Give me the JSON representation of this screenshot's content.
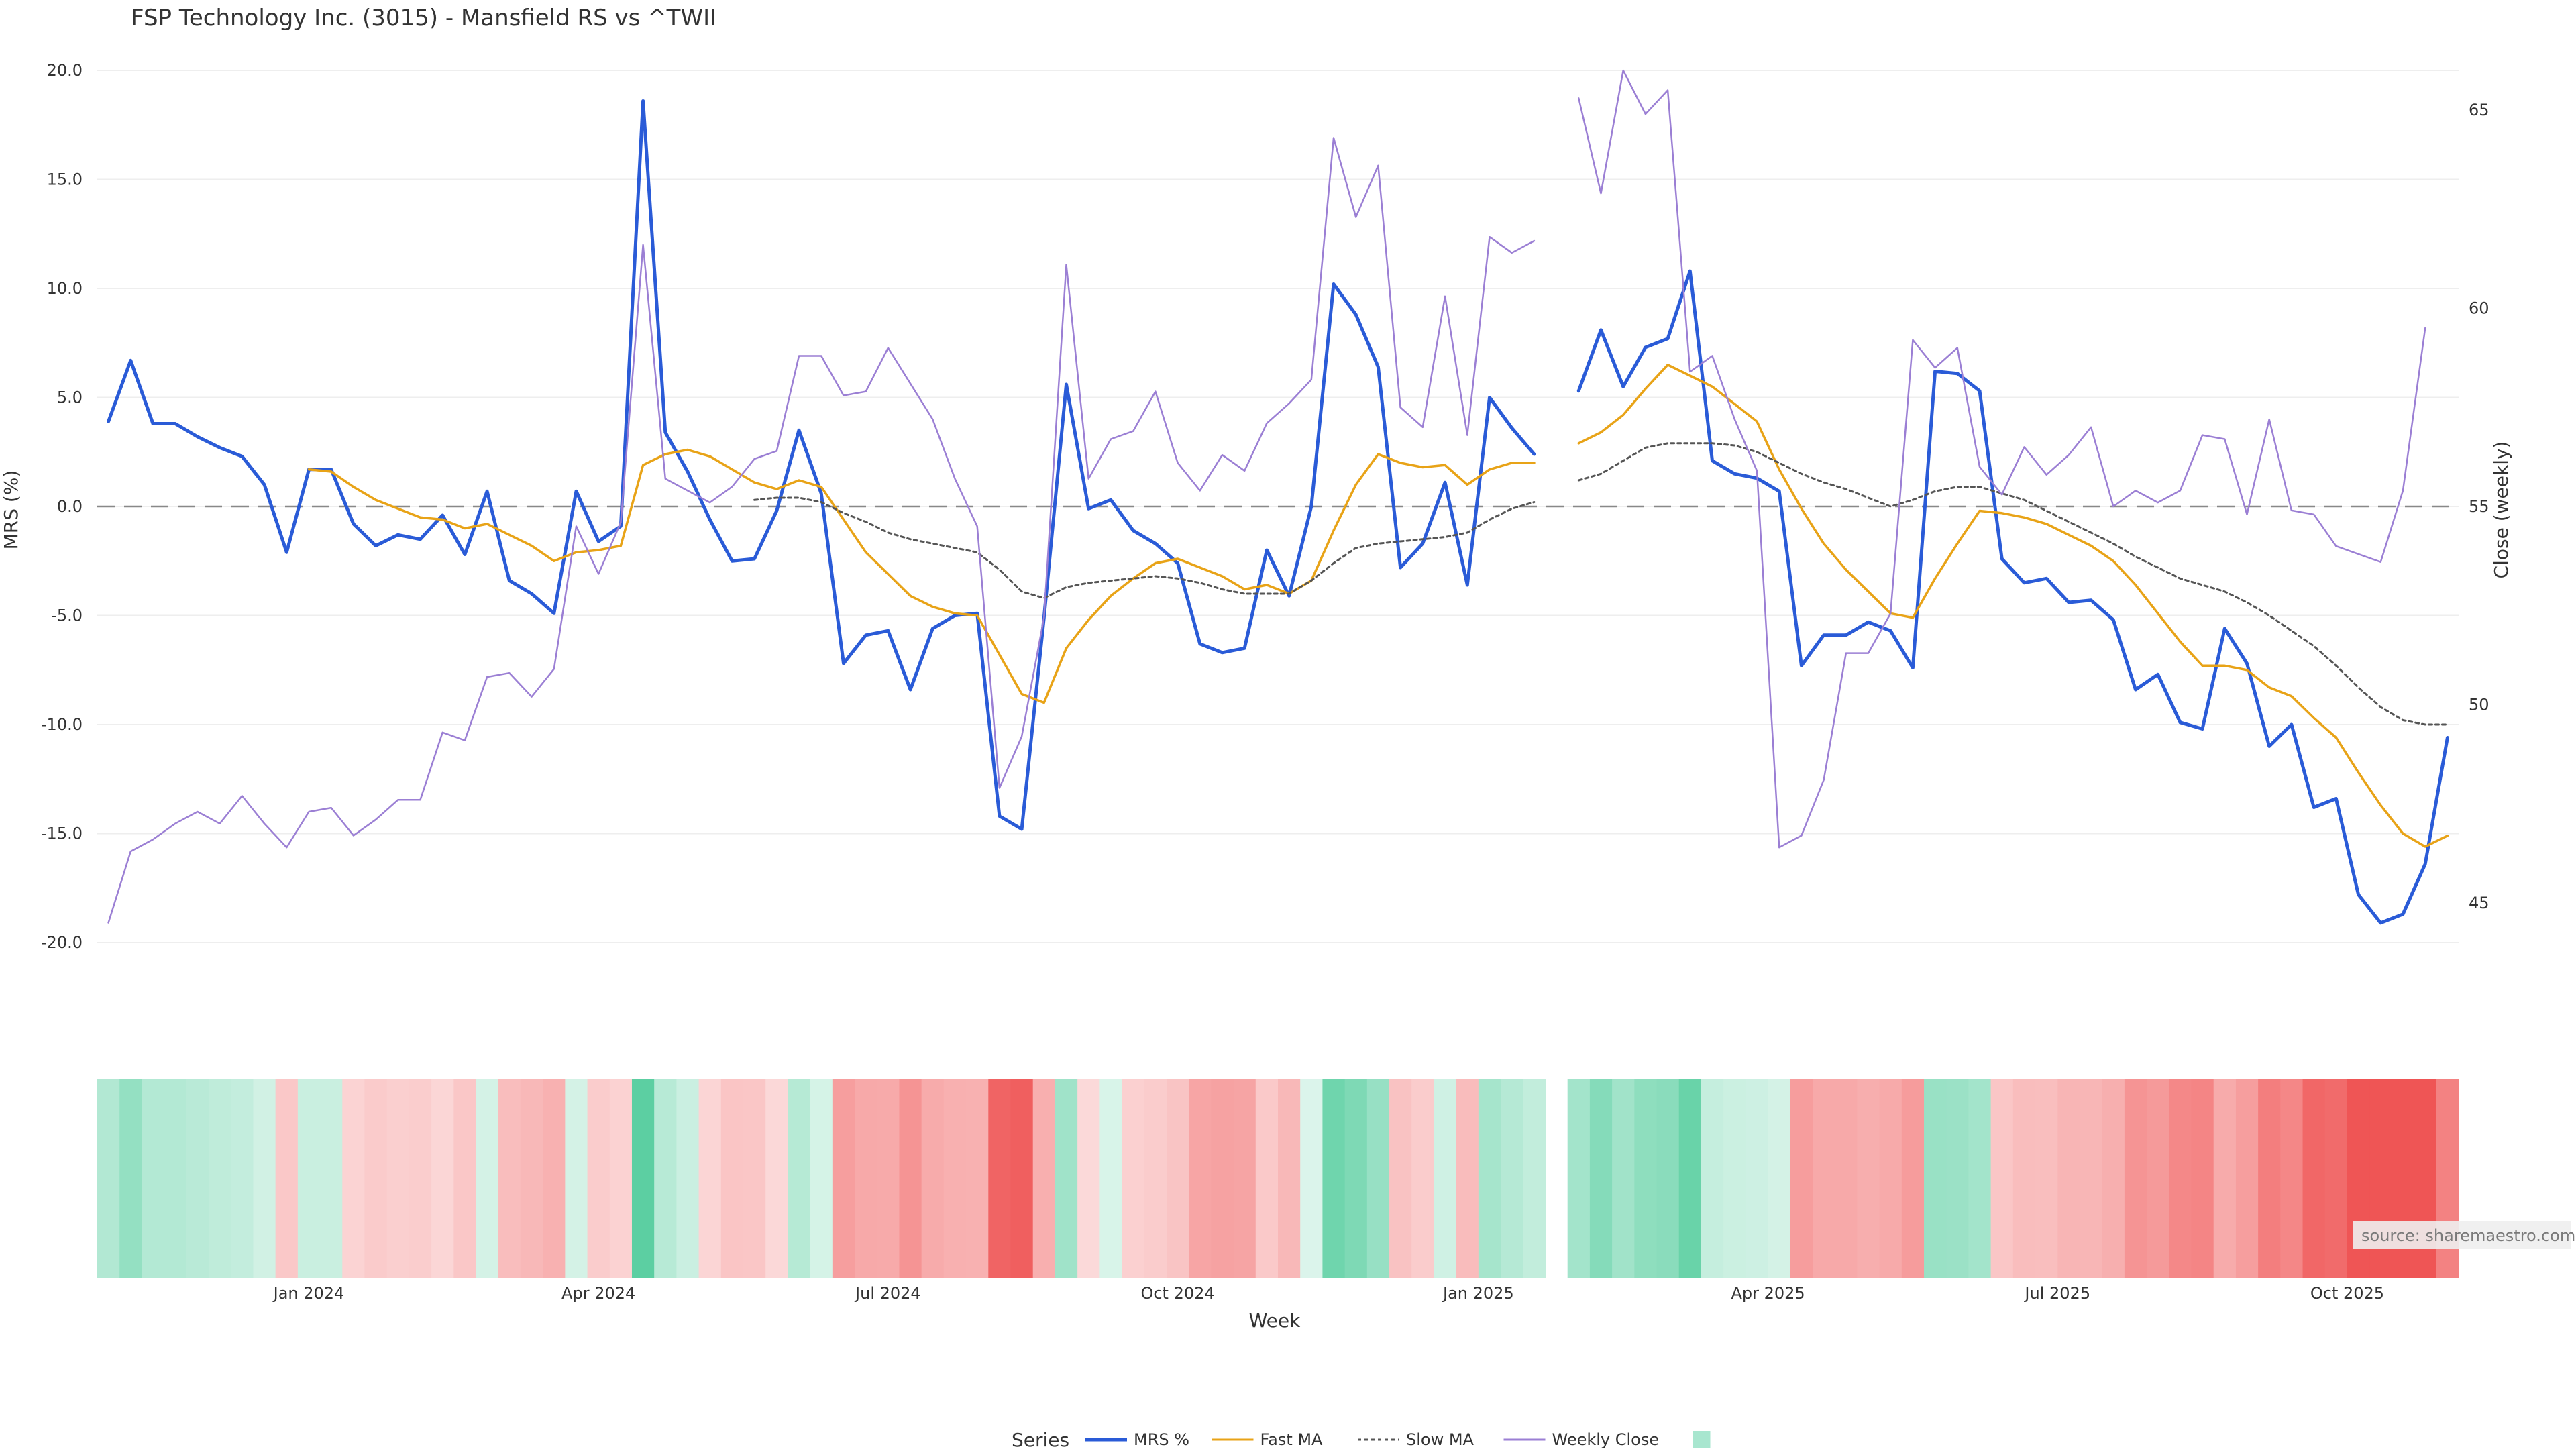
{
  "chart_data": {
    "type": "line",
    "title": "FSP Technology Inc. (3015) - Mansfield RS vs ^TWII",
    "xlabel": "Week",
    "ylabel_left": "MRS (%)",
    "ylabel_right": "Close (weekly)",
    "ylim_left": [
      -20,
      20
    ],
    "ylim_right": [
      44,
      66
    ],
    "left_ticks": [
      "20.0",
      "15.0",
      "10.0",
      "5.0",
      "0.0",
      "-5.0",
      "-10.0",
      "-15.0",
      "-20.0"
    ],
    "left_tick_values": [
      20,
      15,
      10,
      5,
      0,
      -5,
      -10,
      -15,
      -20
    ],
    "right_ticks": [
      "65",
      "60",
      "55",
      "50",
      "45"
    ],
    "right_tick_values": [
      65,
      60,
      55,
      50,
      45
    ],
    "x_ticks": [
      {
        "label": "Jan 2024",
        "week": 9
      },
      {
        "label": "Apr 2024",
        "week": 22
      },
      {
        "label": "Jul 2024",
        "week": 35
      },
      {
        "label": "Oct 2024",
        "week": 48
      },
      {
        "label": "Jan 2025",
        "week": 61.5
      },
      {
        "label": "Apr 2025",
        "week": 74.5
      },
      {
        "label": "Jul 2025",
        "week": 87.5
      },
      {
        "label": "Oct 2025",
        "week": 100.5
      }
    ],
    "gap_week": 65,
    "series": [
      {
        "name": "MRS %",
        "color": "#2a5bd7",
        "style": "solid",
        "axis": "left",
        "values": [
          3.9,
          6.7,
          3.8,
          3.8,
          3.2,
          2.7,
          2.3,
          1.0,
          -2.1,
          1.7,
          1.7,
          -0.8,
          -1.8,
          -1.3,
          -1.5,
          -0.4,
          -2.2,
          0.7,
          -3.4,
          -4.0,
          -4.9,
          0.7,
          -1.6,
          -0.9,
          18.6,
          3.4,
          1.6,
          -0.6,
          -2.5,
          -2.4,
          -0.2,
          3.5,
          0.6,
          -7.2,
          -5.9,
          -5.7,
          -8.4,
          -5.6,
          -5.0,
          -4.9,
          -14.2,
          -14.8,
          -5.1,
          5.6,
          -0.1,
          0.3,
          -1.1,
          -1.7,
          -2.6,
          -6.3,
          -6.7,
          -6.5,
          -2.0,
          -4.1,
          0.0,
          10.2,
          8.8,
          6.4,
          -2.8,
          -1.7,
          1.1,
          -3.6,
          5.0,
          3.6,
          2.4,
          null,
          5.3,
          8.1,
          5.5,
          7.3,
          7.7,
          10.8,
          2.1,
          1.5,
          1.3,
          0.7,
          -7.3,
          -5.9,
          -5.9,
          -5.3,
          -5.7,
          -7.4,
          6.2,
          6.1,
          5.3,
          -2.4,
          -3.5,
          -3.3,
          -4.4,
          -4.3,
          -5.2,
          -8.4,
          -7.7,
          -9.9,
          -10.2,
          -5.6,
          -7.2,
          -11.0,
          -10.0,
          -13.8,
          -13.4,
          -17.8,
          -19.1,
          -18.7,
          -16.4,
          -10.6
        ]
      },
      {
        "name": "Fast MA",
        "color": "#e8a317",
        "style": "solid",
        "axis": "left",
        "values": [
          null,
          null,
          null,
          null,
          null,
          null,
          null,
          null,
          null,
          1.7,
          1.6,
          0.9,
          0.3,
          -0.1,
          -0.5,
          -0.6,
          -1.0,
          -0.8,
          -1.3,
          -1.8,
          -2.5,
          -2.1,
          -2.0,
          -1.8,
          1.9,
          2.4,
          2.6,
          2.3,
          1.7,
          1.1,
          0.8,
          1.2,
          0.9,
          -0.6,
          -2.1,
          -3.1,
          -4.1,
          -4.6,
          -4.9,
          -5.0,
          -6.8,
          -8.6,
          -9.0,
          -6.5,
          -5.2,
          -4.1,
          -3.3,
          -2.6,
          -2.4,
          -2.8,
          -3.2,
          -3.8,
          -3.6,
          -4.0,
          -3.4,
          -1.1,
          1.0,
          2.4,
          2.0,
          1.8,
          1.9,
          1.0,
          1.7,
          2.0,
          2.0,
          null,
          2.9,
          3.4,
          4.2,
          5.4,
          6.5,
          6.0,
          5.5,
          4.7,
          3.9,
          1.7,
          -0.1,
          -1.7,
          -2.9,
          -3.9,
          -4.9,
          -5.1,
          -3.3,
          -1.7,
          -0.2,
          -0.3,
          -0.5,
          -0.8,
          -1.3,
          -1.8,
          -2.5,
          -3.6,
          -4.9,
          -6.2,
          -7.3,
          -7.3,
          -7.5,
          -8.3,
          -8.7,
          -9.7,
          -10.6,
          -12.2,
          -13.7,
          -15.0,
          -15.6,
          -15.1
        ]
      },
      {
        "name": "Slow MA",
        "color": "#555555",
        "style": "dotted",
        "axis": "left",
        "values": [
          null,
          null,
          null,
          null,
          null,
          null,
          null,
          null,
          null,
          null,
          null,
          null,
          null,
          null,
          null,
          null,
          null,
          null,
          null,
          null,
          null,
          null,
          null,
          null,
          null,
          null,
          null,
          null,
          null,
          0.3,
          0.4,
          0.4,
          0.2,
          -0.3,
          -0.7,
          -1.2,
          -1.5,
          -1.7,
          -1.9,
          -2.1,
          -2.9,
          -3.9,
          -4.2,
          -3.7,
          -3.5,
          -3.4,
          -3.3,
          -3.2,
          -3.3,
          -3.5,
          -3.8,
          -4.0,
          -4.0,
          -4.0,
          -3.4,
          -2.6,
          -1.9,
          -1.7,
          -1.6,
          -1.5,
          -1.4,
          -1.2,
          -0.6,
          -0.1,
          0.2,
          null,
          1.2,
          1.5,
          2.1,
          2.7,
          2.9,
          2.9,
          2.9,
          2.8,
          2.5,
          2.0,
          1.5,
          1.1,
          0.8,
          0.4,
          0.0,
          0.3,
          0.7,
          0.9,
          0.9,
          0.6,
          0.3,
          -0.2,
          -0.7,
          -1.2,
          -1.7,
          -2.3,
          -2.8,
          -3.3,
          -3.6,
          -3.9,
          -4.4,
          -5.0,
          -5.7,
          -6.4,
          -7.3,
          -8.3,
          -9.2,
          -9.8,
          -10.0,
          -10.0
        ]
      },
      {
        "name": "Weekly Close",
        "color": "#9b7fd4",
        "style": "solid",
        "axis": "right",
        "values": [
          44.5,
          46.3,
          46.6,
          47.0,
          47.3,
          47.0,
          47.7,
          47.0,
          46.4,
          47.3,
          47.4,
          46.7,
          47.1,
          47.6,
          47.6,
          49.3,
          49.1,
          50.7,
          50.8,
          50.2,
          50.9,
          54.5,
          53.3,
          54.6,
          61.6,
          55.7,
          55.4,
          55.1,
          55.5,
          56.2,
          56.4,
          58.8,
          58.8,
          57.8,
          57.9,
          59.0,
          58.1,
          57.2,
          55.7,
          54.5,
          47.9,
          49.2,
          52.2,
          61.1,
          55.7,
          56.7,
          56.9,
          57.9,
          56.1,
          55.4,
          56.3,
          55.9,
          57.1,
          57.6,
          58.2,
          64.3,
          62.3,
          63.6,
          57.5,
          57.0,
          60.3,
          56.8,
          61.8,
          61.4,
          61.7,
          null,
          65.3,
          62.9,
          66.0,
          64.9,
          65.5,
          58.4,
          58.8,
          57.2,
          55.9,
          46.4,
          46.7,
          48.1,
          51.3,
          51.3,
          52.3,
          59.2,
          58.5,
          59.0,
          56.0,
          55.3,
          56.5,
          55.8,
          56.3,
          57.0,
          55.0,
          55.4,
          55.1,
          55.4,
          56.8,
          56.7,
          54.8,
          57.2,
          54.9,
          54.8,
          54.0,
          53.8,
          53.6,
          55.4,
          59.5
        ]
      }
    ],
    "heatmap": {
      "description_values_are_mrs": true,
      "values": [
        3.9,
        6.7,
        3.8,
        3.8,
        3.2,
        2.7,
        2.3,
        1.0,
        -2.1,
        1.7,
        1.7,
        -0.8,
        -1.8,
        -1.3,
        -1.5,
        -0.4,
        -2.2,
        0.7,
        -3.4,
        -4.0,
        -4.9,
        0.7,
        -1.6,
        -0.9,
        18.6,
        3.4,
        1.6,
        -0.6,
        -2.5,
        -2.4,
        -0.2,
        3.5,
        0.6,
        -7.2,
        -5.9,
        -5.7,
        -8.4,
        -5.6,
        -5.0,
        -4.9,
        -14.2,
        -14.8,
        -5.1,
        5.6,
        -0.1,
        0.3,
        -1.1,
        -1.7,
        -2.6,
        -6.3,
        -6.7,
        -6.5,
        -2.0,
        -4.1,
        0.0,
        10.2,
        8.8,
        6.4,
        -2.8,
        -1.7,
        1.1,
        -3.6,
        5.0,
        3.6,
        2.4,
        null,
        5.3,
        8.1,
        5.5,
        7.3,
        7.7,
        10.8,
        2.1,
        1.5,
        1.3,
        0.7,
        -7.3,
        -5.9,
        -5.9,
        -5.3,
        -5.7,
        -7.4,
        6.2,
        6.1,
        5.3,
        -2.4,
        -3.5,
        -3.3,
        -4.4,
        -4.3,
        -5.2,
        -8.4,
        -7.7,
        -9.9,
        -10.2,
        -5.6,
        -7.2,
        -11.0,
        -10.0,
        -13.8,
        -13.4,
        -17.8,
        -19.1,
        -18.7,
        -16.4,
        -10.6
      ],
      "positive_color": "#5ccfa2",
      "negative_color": "#ef5555"
    },
    "legend": {
      "title": "Series",
      "items": [
        "MRS %",
        "Fast MA",
        "Slow MA",
        "Weekly Close"
      ],
      "extra_swatch_color": "#a8e6cf",
      "placement": "bottom-center"
    },
    "source": "source: sharemaestro.com"
  }
}
